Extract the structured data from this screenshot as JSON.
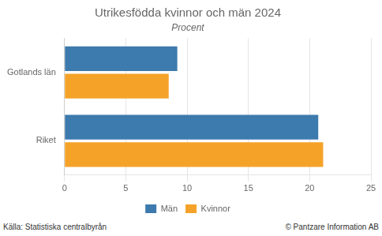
{
  "chart_data": {
    "type": "bar",
    "orientation": "horizontal",
    "title": "Utrikesfödda kvinnor och män 2024",
    "subtitle": "Procent",
    "categories": [
      "Riket",
      "Gotlands län"
    ],
    "series": [
      {
        "name": "Män",
        "color": "#3d7aad",
        "values": [
          20.7,
          9.2
        ]
      },
      {
        "name": "Kvinnor",
        "color": "#f5a229",
        "values": [
          21.1,
          8.5
        ]
      }
    ],
    "xlim": [
      0,
      25
    ],
    "xticks": [
      0,
      5,
      10,
      15,
      20,
      25
    ],
    "grid": true,
    "legend": "bottom",
    "annotations": [
      "Källa: Statistiska centralbyrån",
      "© Pantzare Information AB"
    ]
  }
}
